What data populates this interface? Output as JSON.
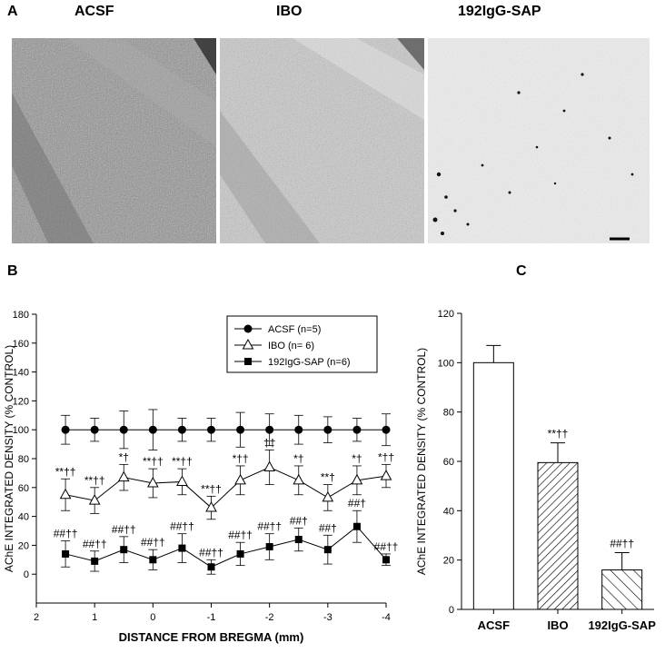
{
  "panel_a": {
    "letter": "A",
    "labels": [
      "ACSF",
      "IBO",
      "192IgG-SAP"
    ]
  },
  "panel_b": {
    "letter": "B"
  },
  "panel_c": {
    "letter": "C"
  },
  "chart_data": [
    {
      "type": "line",
      "xlabel": "DISTANCE FROM BREGMA (mm)",
      "ylabel": "AChE INTEGRATED DENSITY (% CONTROL)",
      "xlim": [
        2,
        -4
      ],
      "ylim": [
        -20,
        180
      ],
      "xticks": [
        2,
        1,
        0,
        -1,
        -2,
        -3,
        -4
      ],
      "yticks": [
        0,
        20,
        40,
        60,
        80,
        100,
        120,
        140,
        160,
        180
      ],
      "grid": false,
      "legend": "top-right",
      "x": [
        1.5,
        1.0,
        0.5,
        0.0,
        -0.5,
        -1.0,
        -1.5,
        -2.0,
        -2.5,
        -3.0,
        -3.5,
        -4.0
      ],
      "series": [
        {
          "name": "ACSF (n=5)",
          "marker": "circle-filled",
          "values": [
            100,
            100,
            100,
            100,
            100,
            100,
            100,
            100,
            100,
            100,
            100,
            100
          ],
          "errors": [
            10,
            8,
            13,
            14,
            8,
            8,
            12,
            11,
            10,
            9,
            8,
            11
          ]
        },
        {
          "name": "IBO (n= 6)",
          "marker": "triangle-open",
          "values": [
            55,
            51,
            67,
            63,
            64,
            46,
            65,
            74,
            65,
            53,
            65,
            68
          ],
          "errors": [
            11,
            9,
            9,
            10,
            9,
            8,
            10,
            12,
            10,
            9,
            10,
            8
          ],
          "annotations": [
            "**††",
            "**††",
            "*†",
            "**††",
            "**††",
            "**††",
            "*††",
            "††",
            "*†",
            "**†",
            "*†",
            "*††"
          ]
        },
        {
          "name": "192IgG-SAP (n=6)",
          "marker": "square-filled",
          "values": [
            14,
            9,
            17,
            10,
            18,
            5,
            14,
            19,
            24,
            17,
            33,
            10
          ],
          "errors": [
            9,
            7,
            9,
            7,
            10,
            5,
            8,
            9,
            8,
            10,
            11,
            4
          ],
          "annotations": [
            "##††",
            "##††",
            "##††",
            "##††",
            "##††",
            "##††",
            "##††",
            "##††",
            "##†",
            "##†",
            "##†",
            "##††"
          ]
        }
      ]
    },
    {
      "type": "bar",
      "ylabel": "AChE INTEGRATED DENSITY (% CONTROL)",
      "categories": [
        "ACSF",
        "IBO",
        "192IgG-SAP"
      ],
      "values": [
        100,
        59.5,
        16
      ],
      "errors": [
        7,
        8,
        7
      ],
      "fills": [
        "open",
        "dense-hatch",
        "sparse-hatch"
      ],
      "annotations": [
        "",
        "**††",
        "##††"
      ],
      "ylim": [
        0,
        120
      ],
      "yticks": [
        0,
        20,
        40,
        60,
        80,
        100,
        120
      ]
    }
  ]
}
